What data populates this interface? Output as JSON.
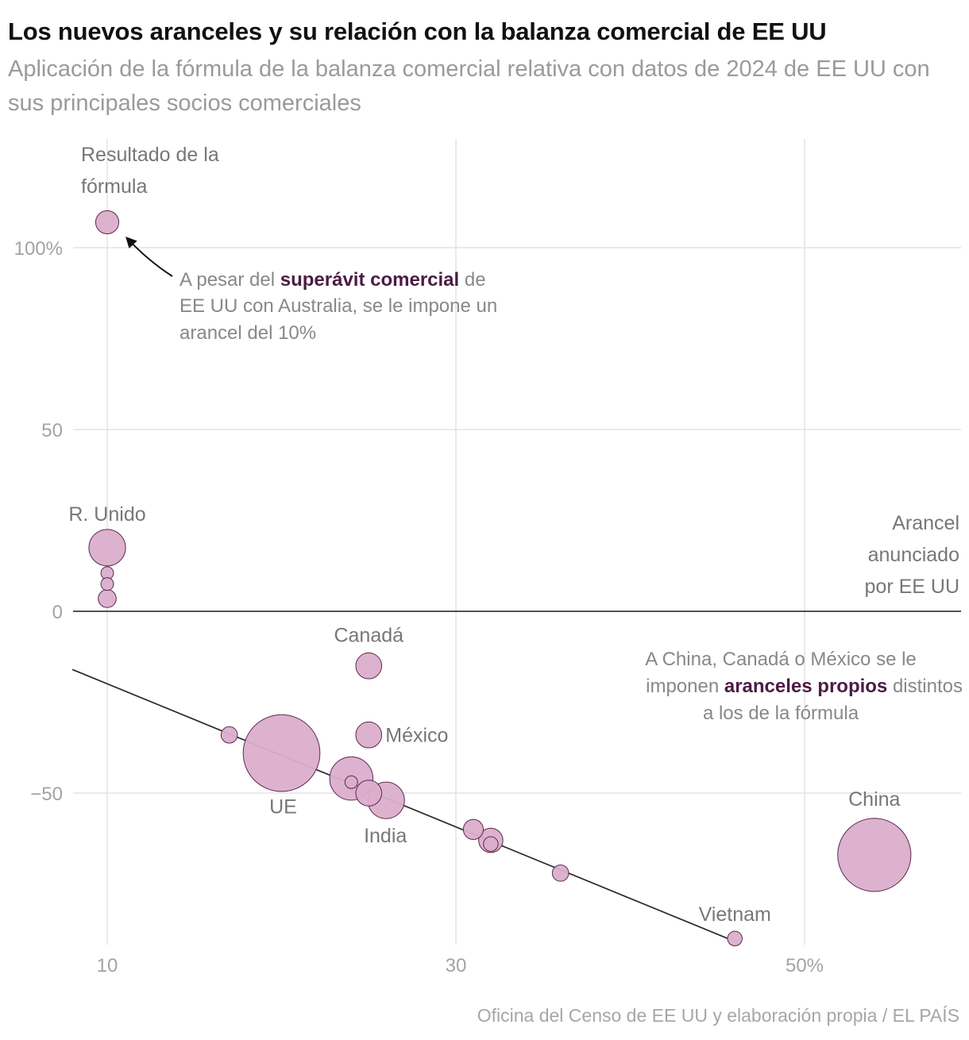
{
  "header": {
    "title": "Los nuevos aranceles y su relación con la balanza comercial de EE UU",
    "subtitle": "Aplicación de la fórmula de la balanza comercial relativa con datos de 2024 de EE UU con sus principales socios comerciales"
  },
  "chart_data": {
    "type": "scatter",
    "xlabel": "Arancel anunciado por EE UU",
    "ylabel": "Resultado de la fórmula",
    "xlim": [
      8,
      58.5
    ],
    "ylim": [
      -90,
      130
    ],
    "x_ticks": [
      {
        "value": 10,
        "label": "10"
      },
      {
        "value": 30,
        "label": "30"
      },
      {
        "value": 50,
        "label": "50%"
      }
    ],
    "y_ticks": [
      {
        "value": 100,
        "label": "100%"
      },
      {
        "value": 50,
        "label": "50"
      },
      {
        "value": 0,
        "label": "0"
      },
      {
        "value": -50,
        "label": "−50"
      }
    ],
    "ylabel_lines": [
      "Resultado de la",
      "fórmula"
    ],
    "xlabel_lines": [
      "Arancel",
      "anunciado",
      "por EE UU"
    ],
    "points": [
      {
        "x": 10,
        "y": 107,
        "size": 2,
        "label": ""
      },
      {
        "x": 10,
        "y": 17.5,
        "size": 5,
        "label": "R. Unido"
      },
      {
        "x": 10,
        "y": 10.5,
        "size": 0.6,
        "label": ""
      },
      {
        "x": 10,
        "y": 7.5,
        "size": 0.6,
        "label": ""
      },
      {
        "x": 10,
        "y": 3.5,
        "size": 1.2,
        "label": ""
      },
      {
        "x": 25,
        "y": -15,
        "size": 2.5,
        "label": "Canadá"
      },
      {
        "x": 25,
        "y": -34,
        "size": 2.5,
        "label": "México"
      },
      {
        "x": 17,
        "y": -34,
        "size": 1,
        "label": ""
      },
      {
        "x": 20,
        "y": -39,
        "size": 22,
        "label": "UE"
      },
      {
        "x": 24,
        "y": -46,
        "size": 7,
        "label": ""
      },
      {
        "x": 24,
        "y": -47,
        "size": 0.6,
        "label": ""
      },
      {
        "x": 25,
        "y": -50,
        "size": 2.5,
        "label": ""
      },
      {
        "x": 26,
        "y": -52,
        "size": 5,
        "label": "India"
      },
      {
        "x": 31,
        "y": -60,
        "size": 1.5,
        "label": ""
      },
      {
        "x": 32,
        "y": -63,
        "size": 2.2,
        "label": ""
      },
      {
        "x": 32,
        "y": -64,
        "size": 0.8,
        "label": ""
      },
      {
        "x": 36,
        "y": -72,
        "size": 1,
        "label": ""
      },
      {
        "x": 46,
        "y": -90,
        "size": 0.8,
        "label": "Vietnam"
      },
      {
        "x": 54,
        "y": -67,
        "size": 20,
        "label": "China"
      }
    ],
    "trend_line": {
      "x": [
        8,
        45.6
      ],
      "y": [
        -16,
        -90
      ]
    },
    "annotations": [
      {
        "lines": [
          [
            "A pesar del ",
            "superávit comercial",
            " de"
          ],
          [
            "EE UU con Australia, se le impone un"
          ],
          [
            "arancel del 10%"
          ]
        ]
      },
      {
        "lines": [
          [
            "A China, Canadá o México se le"
          ],
          [
            "imponen ",
            "aranceles propios",
            " distintos"
          ],
          [
            "a los de la fórmula"
          ]
        ]
      }
    ],
    "colors": {
      "point_fill": "#dbaecb",
      "point_stroke": "#5a2850",
      "highlight": "#4a1c45",
      "line": "#2a2a2a"
    }
  },
  "footer": {
    "source": "Oficina del Censo de EE UU y elaboración propia / EL PAÍS"
  }
}
